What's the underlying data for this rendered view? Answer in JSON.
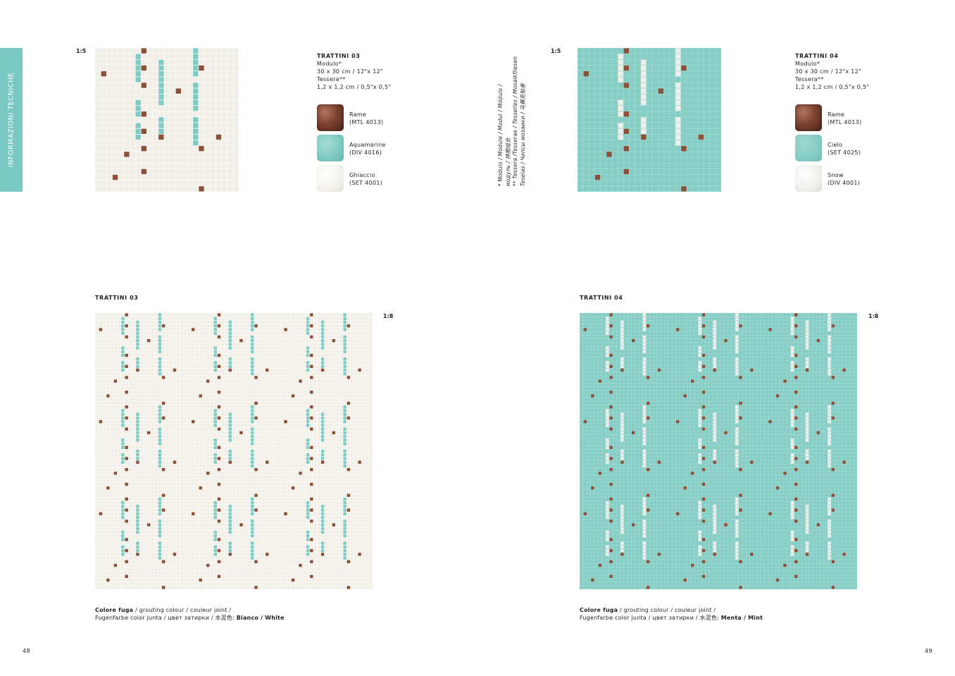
{
  "side_tab": {
    "label": "INFORMAZIONI TECNICHE",
    "color": "#79c8c2"
  },
  "module_note": {
    "lines": [
      "* Modulo / Module / Modul / Módulo /",
      "модуль / 拼图组合",
      "** Tessera /Tesserae / Tesselles / Mosaikfliesen",
      "Teselas / Чипсы мозаики / 马赛克贴者"
    ]
  },
  "left": {
    "scale_small": "1:5",
    "scale_large": "1:8",
    "product_title": "TRATTINI 03",
    "section_title": "TRATTINI 03",
    "specs": [
      "Modulo*",
      "30 x 30 cm / 12\"x 12\"",
      "Tessera**",
      "1,2 x 1,2 cm / 0,5\"x 0,5\""
    ],
    "swatches": [
      {
        "name": "Rame",
        "code": "(MTL 4013)",
        "color": "#7c4231"
      },
      {
        "name": "Aquamarine",
        "code": "(DIV 4016)",
        "color": "#7ecbc3"
      },
      {
        "name": "Ghiaccio",
        "code": "(SET 4001)",
        "color": "#f4f2ec"
      }
    ],
    "grout_line1_bold": "Colore fuga",
    "grout_line1_rest": " / grouting colour / couleur joint /",
    "grout_line2_rest": "Fugenfarbe color junta / цвет затирки / 水泥色: ",
    "grout_value": "Bianco / White",
    "page_number": "48",
    "base_color": "#f1efe8",
    "grout_color": "#fbfaf7",
    "accent_color": "#7ecbc3"
  },
  "right": {
    "scale_small": "1:5",
    "scale_large": "1:8",
    "product_title": "TRATTINI 04",
    "section_title": "TRATTINI 04",
    "specs": [
      "Modulo*",
      "30 x 30 cm / 12\"x 12\"",
      "Tessera**",
      "1,2 x 1,2 cm / 0,5\"x 0,5\""
    ],
    "swatches": [
      {
        "name": "Rame",
        "code": "(MTL 4013)",
        "color": "#7c4231"
      },
      {
        "name": "Cielo",
        "code": "(SET 4025)",
        "color": "#85cdc5"
      },
      {
        "name": "Snow",
        "code": "(DIV 4001)",
        "color": "#efefec"
      }
    ],
    "grout_line1_bold": "Colore fuga",
    "grout_line1_rest": " / grouting colour / couleur joint /",
    "grout_line2_rest": "Fugenfarbe color junta / цвет затирки / 水泥色: ",
    "grout_value": "Menta / Mint",
    "page_number": "49",
    "base_color": "#85cdc5",
    "grout_color": "#9fd9d2",
    "accent_color": "#eeeeea"
  },
  "copper_color": "#8a5138"
}
